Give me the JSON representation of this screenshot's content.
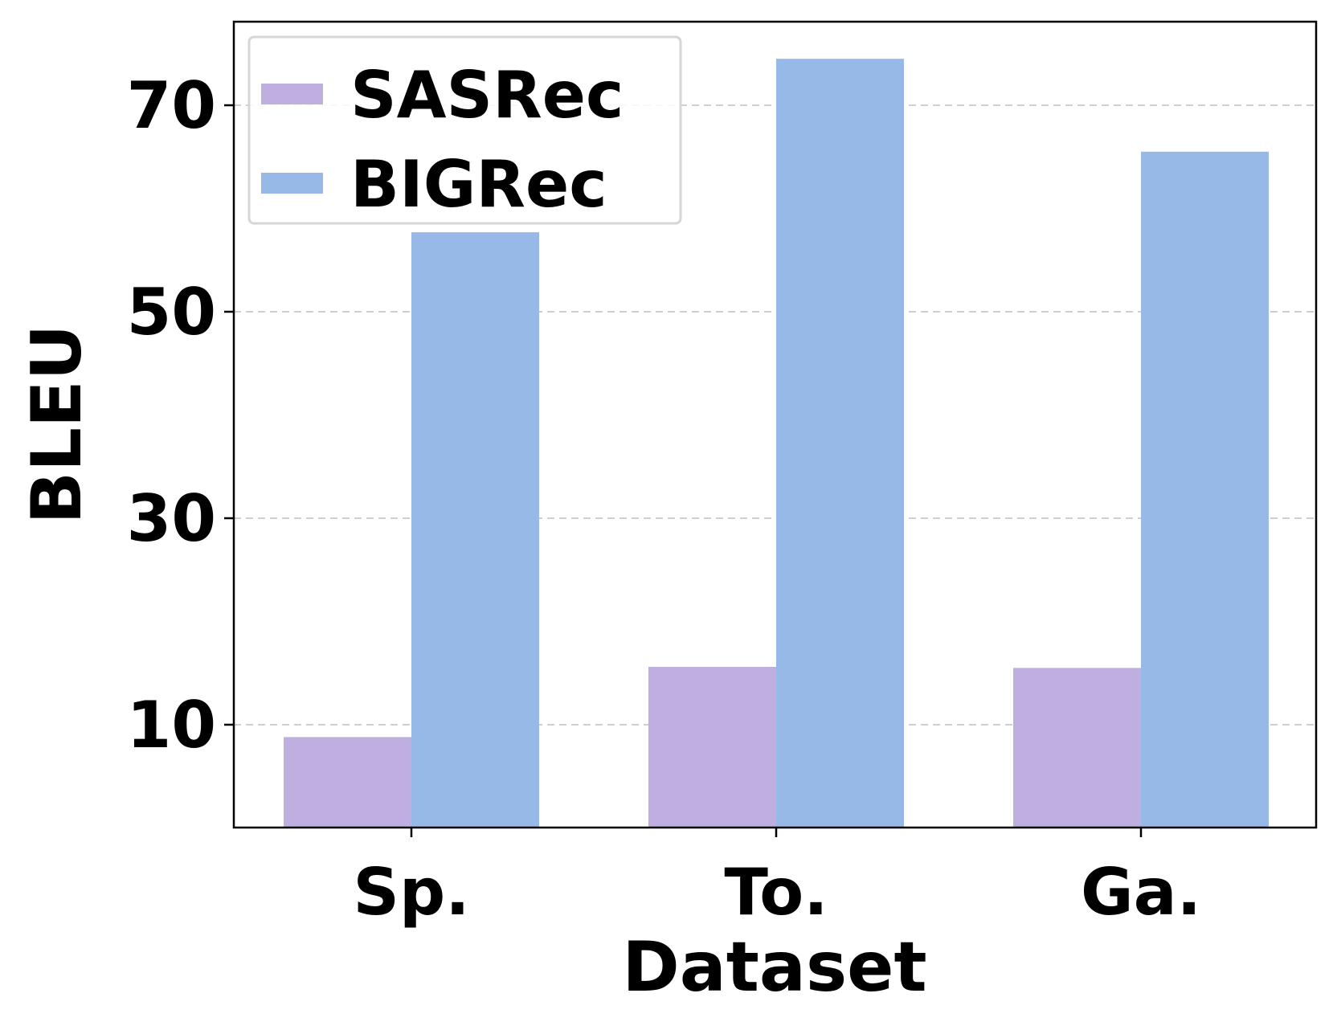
{
  "chart_data": {
    "type": "bar",
    "title": "",
    "xlabel": "Dataset",
    "ylabel": "BLEU",
    "categories": [
      "Sp.",
      "To.",
      "Ga."
    ],
    "series": [
      {
        "name": "SASRec",
        "values": [
          8.8,
          15.6,
          15.5
        ],
        "color": "#bfaee0"
      },
      {
        "name": "BIGRec",
        "values": [
          57.7,
          74.5,
          65.5
        ],
        "color": "#97b9e8"
      }
    ],
    "ylim": [
      0,
      78
    ],
    "yticks": [
      10,
      30,
      50,
      70
    ],
    "grid": "horizontal dashed",
    "legend_position": "top-left"
  }
}
